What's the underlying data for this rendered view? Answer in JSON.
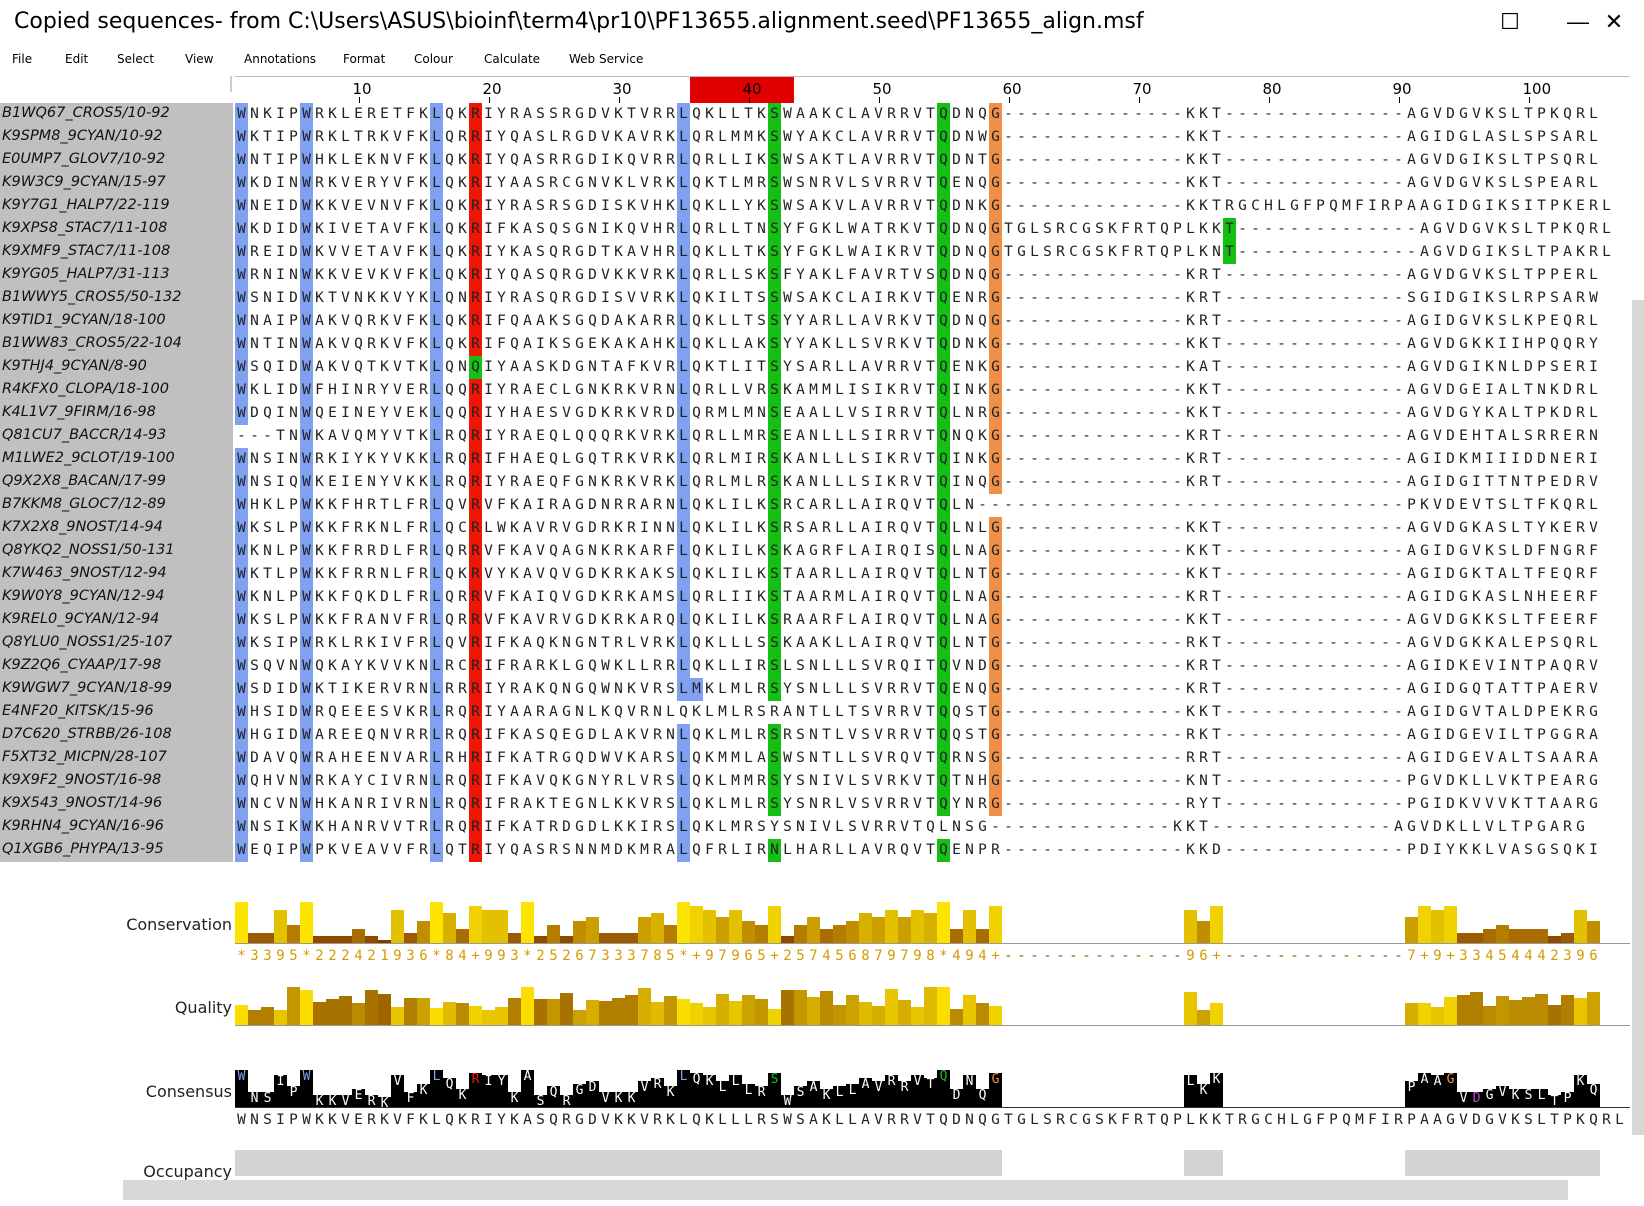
{
  "window": {
    "title": "Copied sequences- from C:\\Users\\ASUS\\bioinf\\term4\\pr10\\PF13655.alignment.seed\\PF13655_align.msf",
    "controls": [
      "—",
      "☐",
      "✕"
    ]
  },
  "menu": [
    "File",
    "Edit",
    "Select",
    "View",
    "Annotations",
    "Format",
    "Colour",
    "Calculate",
    "Web Service"
  ],
  "ruler": {
    "labels": [
      "10",
      "20",
      "30",
      "40",
      "50",
      "60",
      "70",
      "80",
      "90",
      "100"
    ],
    "highlight": {
      "start": 36,
      "end": 43
    }
  },
  "sequences": [
    {
      "name": "B1WQ67_CROS5/10-92",
      "seq": "WNKIPWRKLERETFKLQKRIYRASSRGDVKTVRRLQKLLTKSWAAKCLAVRRVTQDNQG--------------KKT--------------AGVDGVKSLTPKQRL"
    },
    {
      "name": "K9SPM8_9CYAN/10-92",
      "seq": "WKTIPWRKLTRKVFKLQRRIYQASLRGDVKAVRKLQRLMMKSWYAKCLAVRRVTQDNWG--------------KKT--------------AGIDGLASLSPSARL"
    },
    {
      "name": "E0UMP7_GLOV7/10-92",
      "seq": "WNTIPWHKLEKNVFKLQKRIYQASRRGDIKQVRRLQRLLIKSWSAKTLAVRRVTQDNTG--------------KKT--------------AGVDGIKSLTPSQRL"
    },
    {
      "name": "K9W3C9_9CYAN/15-97",
      "seq": "WKDINWRKVERYVFKLQKRIYAASRCGNVKLVRKLQKTLMRSWSNRVLSVRRVTQENQG--------------KKT--------------AGVDGVKSLSPEARL"
    },
    {
      "name": "K9Y7G1_HALP7/22-119",
      "seq": "WNEIDWKKVEVNVFKLQKRIYRASRSGDISKVHKLQKLLYKSWSAKVLAVRRVTQDNKG--------------KKTRGCHLGFPQMFIRPAAGIDGIKSITPKERL"
    },
    {
      "name": "K9XPS8_STAC7/11-108",
      "seq": "WKDIDWKIVETAVFKLQKRIFKASQSGNIKQVHRLQRLLTNSYFGKLWATRKVTQDNQGTGLSRCGSKFRTQPLKKT--------------AGVDGVKSLTPKQRL"
    },
    {
      "name": "K9XMF9_STAC7/11-108",
      "seq": "WREIDWKVVETAVFKLQKRIYKASQRGDTKAVHRLQKLLTKSYFGKLWAIKRVTQDNQGTGLSRCGSKFRTQPLKNT--------------AGVDGIKSLTPAKRL"
    },
    {
      "name": "K9YG05_HALP7/31-113",
      "seq": "WRNINWKKVEVKVFKLQKRIYQASQRGDVKKVRKLQRLLSKSFYAKLFAVRTVSQDNQG--------------KRT--------------AGVDGVKSLTPPERL"
    },
    {
      "name": "B1WWY5_CROS5/50-132",
      "seq": "WSNIDWKTVNKKVYKLQNRIYRASQRGDISVVRKLQKILTSSWSAKCLAIRKVTQENRG--------------KRT--------------SGIDGIKSLRPSARW"
    },
    {
      "name": "K9TID1_9CYAN/18-100",
      "seq": "WNAIPWAKVQRKVFKLQKRIFQAAKSGQDAKARRLQKLLTSSYYARLLAVRKVTQDNQG--------------KRT--------------AGIDGVKSLKPEQRL"
    },
    {
      "name": "B1WW83_CROS5/22-104",
      "seq": "WNTINWAKVQRKVFKLQKRIFQAIKSGEKAKAHKLQKLLAKSYYAKLLSVRKVTQDNKG--------------KKT--------------AGVDGKKIIHPQQRY"
    },
    {
      "name": "K9THJ4_9CYAN/8-90",
      "seq": "WSQIDWAKVQTKVTKLQNQIYAASKDGNTAFKVRLQKTLITSYSARLLAVRRVTQENKG--------------KAT--------------AGVDGIKNLDPSERI"
    },
    {
      "name": "R4KFX0_CLOPA/18-100",
      "seq": "WKLIDWFHINRYVERLQQRIYRAECLGNKRKVRNLQRLLVRSKAMMLISIKRVTQINKG--------------KKT--------------AGVDGEIALTNKDRL"
    },
    {
      "name": "K4L1V7_9FIRM/16-98",
      "seq": "WDQINWQEINEYVEKLQQRIYHAESVGDKRKVRDLQRMLMNSEAALLVSIRRVTQLNRG--------------KKT--------------AGVDGYKALTPKDRL"
    },
    {
      "name": "Q81CU7_BACCR/14-93",
      "seq": "---TNWKAVQMYVTKLRQRIYRAEQLQQQRKVRKLQRLLMRSEANLLLSIRRVTQNQKG--------------KRT--------------AGVDEHTALSRRERN"
    },
    {
      "name": "M1LWE2_9CLOT/19-100",
      "seq": "WNSINWRKIYKYVKKLRQRIFHAEQLGQTRKVRKLQRLMIRSKANLLLSIKRVTQINKG--------------KRT--------------AGIDKMIIIDDNERI"
    },
    {
      "name": "Q9X2X8_BACAN/17-99",
      "seq": "WNSIQWKEIENYVKKLRQRIYRAEQFGNKRKVRKLQRLMLRSKANLLLSIKRVTQINQG--------------KRT--------------AGIDGITTNTPEDRV"
    },
    {
      "name": "B7KKM8_GLOC7/12-89",
      "seq": "WHKLPWKKFHRTLFRLQVRVFKAIRAGDNRRARNLQKLILKSRCARLLAIRQVTQLN---------------------------------PKVDEVTSLTFKQRL"
    },
    {
      "name": "K7X2X8_9NOST/14-94",
      "seq": "WKSLPWKKFRKNLFRLQCRLWKAVRVGDRKRINNLQKLILKSRSARLLAIRQVTQLNLG--------------KKT--------------AGVDGKASLTYKERV"
    },
    {
      "name": "Q8YKQ2_NOSS1/50-131",
      "seq": "WKNLPWKKFRRDLFRLQRRVFKAVQAGNKRKARFLQKLILKSKAGRFLAIRQISQLNAG--------------KKT--------------AGIDGVKSLDFNGRF"
    },
    {
      "name": "K7W463_9NOST/12-94",
      "seq": "WKTLPWKKFRRNLFRLQKRVYKAVQVGDKRKAKSLQKLILKSTAARLLAIRQVTQLNTG--------------KKT--------------AGIDGKTALTFEQRF"
    },
    {
      "name": "K9W0Y8_9CYAN/12-94",
      "seq": "WKNLPWKKFQKDLFRLQRRVFKAIQVGDKRKAMSLQRLIIKSTAARMLAIRQVTQLNAG--------------KRT--------------AGIDGKASLNHEERF"
    },
    {
      "name": "K9REL0_9CYAN/12-94",
      "seq": "WKSLPWKKFRANVFRLQRRVFKAVRVGDKRKARQLQKLILKSRAARFLAIRQVTQLNAG--------------KKT--------------AGVDGKKSLTFEERF"
    },
    {
      "name": "Q8YLU0_NOSS1/25-107",
      "seq": "WKSIPWRKLRKIVFRLQVRIFKAQKNGNTRLVRKLQKLLLSSKAAKLLAIRQVTQLNTG--------------RKT--------------AGVDGKKALEPSQRL"
    },
    {
      "name": "K9Z2Q6_CYAAP/17-98",
      "seq": "WSQVNWQKAYKVVKNLRCRIFRARKLGQWKLLRRLQKLLIRSLSNLLLSVRQITQVNDG--------------KRT--------------AGIDKEVINTPAQRV"
    },
    {
      "name": "K9WGW7_9CYAN/18-99",
      "seq": "WSDIDWKTIKERVRNLRRRIYRAKQNGQWNKVRSLMKLMLRSYSNLLLSVRRVTQENQG--------------KRT--------------AGIDGQTATTPAERV"
    },
    {
      "name": "E4NF20_KITSK/15-96",
      "seq": "WHSIDWRQEEESVKRLRQRIYAARAGNLKQVRNLQKLMLRSRANTLLTSVRRVTQQSTG--------------KKT--------------AGIDGVTALDPEKRG"
    },
    {
      "name": "D7C620_STRBB/26-108",
      "seq": "WHGIDWAREEQNVRRLRQRIFKASQEGDLAKVRNLQKLMLRSRSNTLVSVRRVTQQSTG--------------RKT--------------AGIDGEVILTPGGRA"
    },
    {
      "name": "F5XT32_MICPN/28-107",
      "seq": "WDAVQWRAHEENVARLRHRIFKATRGQDWVKARSLQKMMLASWSNTLLSVRQVTQRNSG--------------RRT--------------AGIDGEVALTSAARA"
    },
    {
      "name": "K9X9F2_9NOST/16-98",
      "seq": "WQHVNWRKAYCIVRNLRQRIFKAVQKGNYRLVRSLQKLMMRSYSNIVLSVRKVTQTNHG--------------KNT--------------PGVDKLLVKTPEARG"
    },
    {
      "name": "K9X543_9NOST/14-96",
      "seq": "WNCVNWHKANRIVRNLRQRIFRAKTEGNLKKVRSLQKLMLRSYSNRLVSVRRVTQYNRG--------------RYT--------------PGIDKVVVKTTAARG"
    },
    {
      "name": "K9RHN4_9CYAN/16-96",
      "seq": "WNSIKWKHANRVVTRLRQRIFKATRDGDLKKIRSLQKLMRSYSNIVLSVRRVTQLNSG--------------KKT--------------AGVDKLLVLTPGARG"
    },
    {
      "name": "Q1XGB6_PHYPA/13-95",
      "seq": "WEQIPWPKVEAVVFRLQTRIYQASRSNNMDKMRALQFRLIRNLHARLLAVRQVTQENPR--------------KKD--------------PDIYKKLVASGSQKI"
    }
  ],
  "annotations": {
    "conservation": {
      "label": "Conservation",
      "values": "*3395*222421936*84+993*2526733378 5*+97965+257456879798*494+--------------96+--------------7+9+33454442396"
    },
    "quality": {
      "label": "Quality"
    },
    "consensus": {
      "label": "Consensus",
      "seq": "WNSIPWKKVERKVFKLQKRIYKASQRGDVKKVRKLQKLLLRSWSAKLLAVRRVTQDNQGTGLSRCGSKFRTQPLKKTRGCHLGFPQMFIRPAAGVDGVKSLTPKQRL"
    },
    "occupancy": {
      "label": "Occupancy"
    }
  },
  "colors": {
    "hydrophobic": "#80a0f0",
    "positive": "#f01505",
    "polar": "#15c015",
    "glycine": "#f09048",
    "negative": "#c048c0",
    "name_panel": "#c0c0c0",
    "ruler_highlight": "#e00000"
  }
}
